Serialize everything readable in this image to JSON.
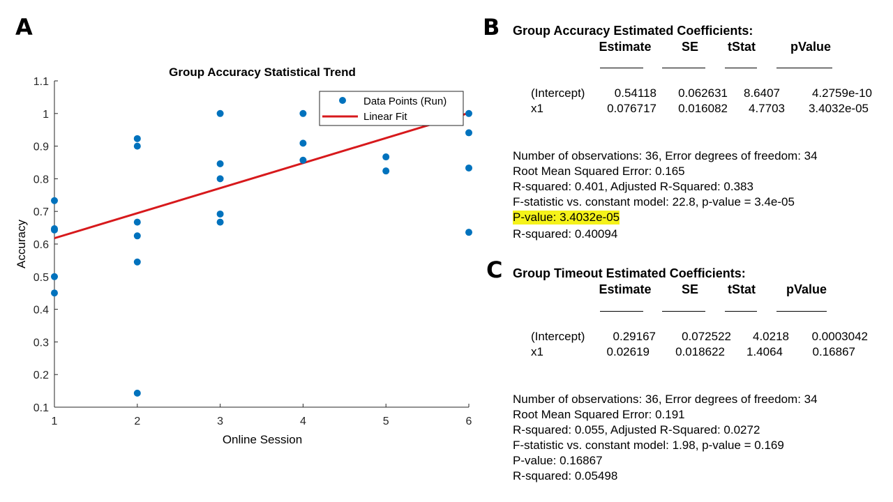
{
  "panels": {
    "a": "A",
    "b": "B",
    "c": "C"
  },
  "chart_data": {
    "type": "scatter",
    "title": "Group Accuracy Statistical Trend",
    "xlabel": "Online Session",
    "ylabel": "Accuracy",
    "xlim": [
      1,
      6
    ],
    "ylim": [
      0.1,
      1.1
    ],
    "xticks": [
      "1",
      "2",
      "3",
      "4",
      "5",
      "6"
    ],
    "yticks": [
      "0.1",
      "0.2",
      "0.3",
      "0.4",
      "0.5",
      "0.6",
      "0.7",
      "0.8",
      "0.9",
      "1",
      "1.1"
    ],
    "legend_position": "top-right",
    "grid": false,
    "series": [
      {
        "name": "Data Points (Run)",
        "color": "#0072bd",
        "points": [
          [
            1,
            0.733
          ],
          [
            1,
            0.647
          ],
          [
            1,
            0.643
          ],
          [
            1,
            0.5
          ],
          [
            1,
            0.45
          ],
          [
            2,
            0.923
          ],
          [
            2,
            0.9
          ],
          [
            2,
            0.667
          ],
          [
            2,
            0.625
          ],
          [
            2,
            0.545
          ],
          [
            2,
            0.143
          ],
          [
            3,
            1.0
          ],
          [
            3,
            0.846
          ],
          [
            3,
            0.8
          ],
          [
            3,
            0.692
          ],
          [
            3,
            0.667
          ],
          [
            4,
            1.0
          ],
          [
            4,
            0.909
          ],
          [
            4,
            0.857
          ],
          [
            5,
            0.867
          ],
          [
            5,
            0.824
          ],
          [
            6,
            1.0
          ],
          [
            6,
            0.941
          ],
          [
            6,
            0.833
          ],
          [
            6,
            0.636
          ]
        ]
      },
      {
        "name": "Linear Fit",
        "color": "#d7191c",
        "intercept": 0.54118,
        "slope": 0.076717
      }
    ]
  },
  "model_b": {
    "title": "Group Accuracy Estimated Coefficients:",
    "headers": [
      "Estimate",
      "SE",
      "tStat",
      "pValue"
    ],
    "rows": [
      {
        "name": "(Intercept)",
        "values": [
          "0.54118",
          "0.062631",
          "8.6407",
          "4.2759e-10"
        ]
      },
      {
        "name": "x1",
        "values": [
          "0.076717",
          "0.016082",
          "4.7703",
          "3.4032e-05"
        ]
      }
    ],
    "lines": [
      "Number of observations: 36, Error degrees of freedom: 34",
      "Root Mean Squared Error: 0.165",
      "R-squared: 0.401,  Adjusted R-Squared: 0.383",
      "F-statistic vs. constant model: 22.8, p-value = 3.4e-05",
      "P-value: 3.4032e-05",
      "R-squared: 0.40094"
    ]
  },
  "model_c": {
    "title": "Group Timeout Estimated Coefficients:",
    "headers": [
      "Estimate",
      "SE",
      "tStat",
      "pValue"
    ],
    "rows": [
      {
        "name": "(Intercept)",
        "values": [
          "0.29167",
          "0.072522",
          "4.0218",
          "0.0003042"
        ]
      },
      {
        "name": "x1",
        "values": [
          "0.02619",
          "0.018622",
          "1.4064",
          "0.16867"
        ]
      }
    ],
    "lines": [
      "Number of observations: 36, Error degrees of freedom: 34",
      "Root Mean Squared Error: 0.191",
      "R-squared: 0.055,  Adjusted R-Squared: 0.0272",
      "F-statistic vs. constant model: 1.98, p-value = 0.169",
      "P-value: 0.16867",
      "R-squared: 0.05498"
    ]
  }
}
